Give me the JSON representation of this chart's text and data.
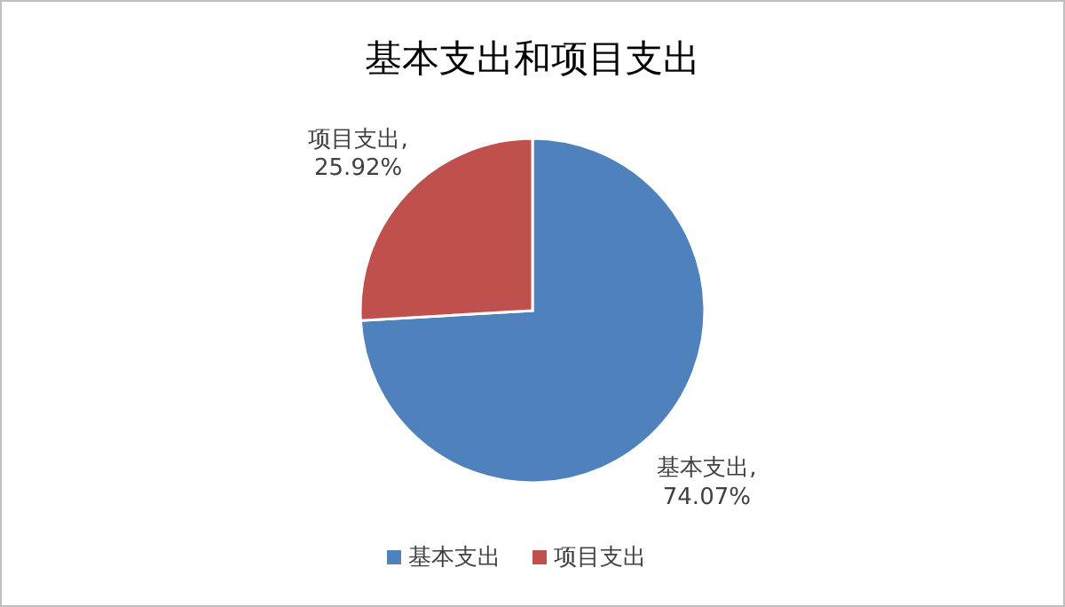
{
  "chart_data": {
    "type": "pie",
    "title": "基本支出和项目支出",
    "categories": [
      "基本支出",
      "项目支出"
    ],
    "values": [
      74.07,
      25.92
    ],
    "value_labels": [
      "基本支出, 74.07%",
      "项目支出, 25.92%"
    ],
    "colors": [
      "#4f81bd",
      "#c0504d"
    ],
    "legend": "bottom"
  }
}
